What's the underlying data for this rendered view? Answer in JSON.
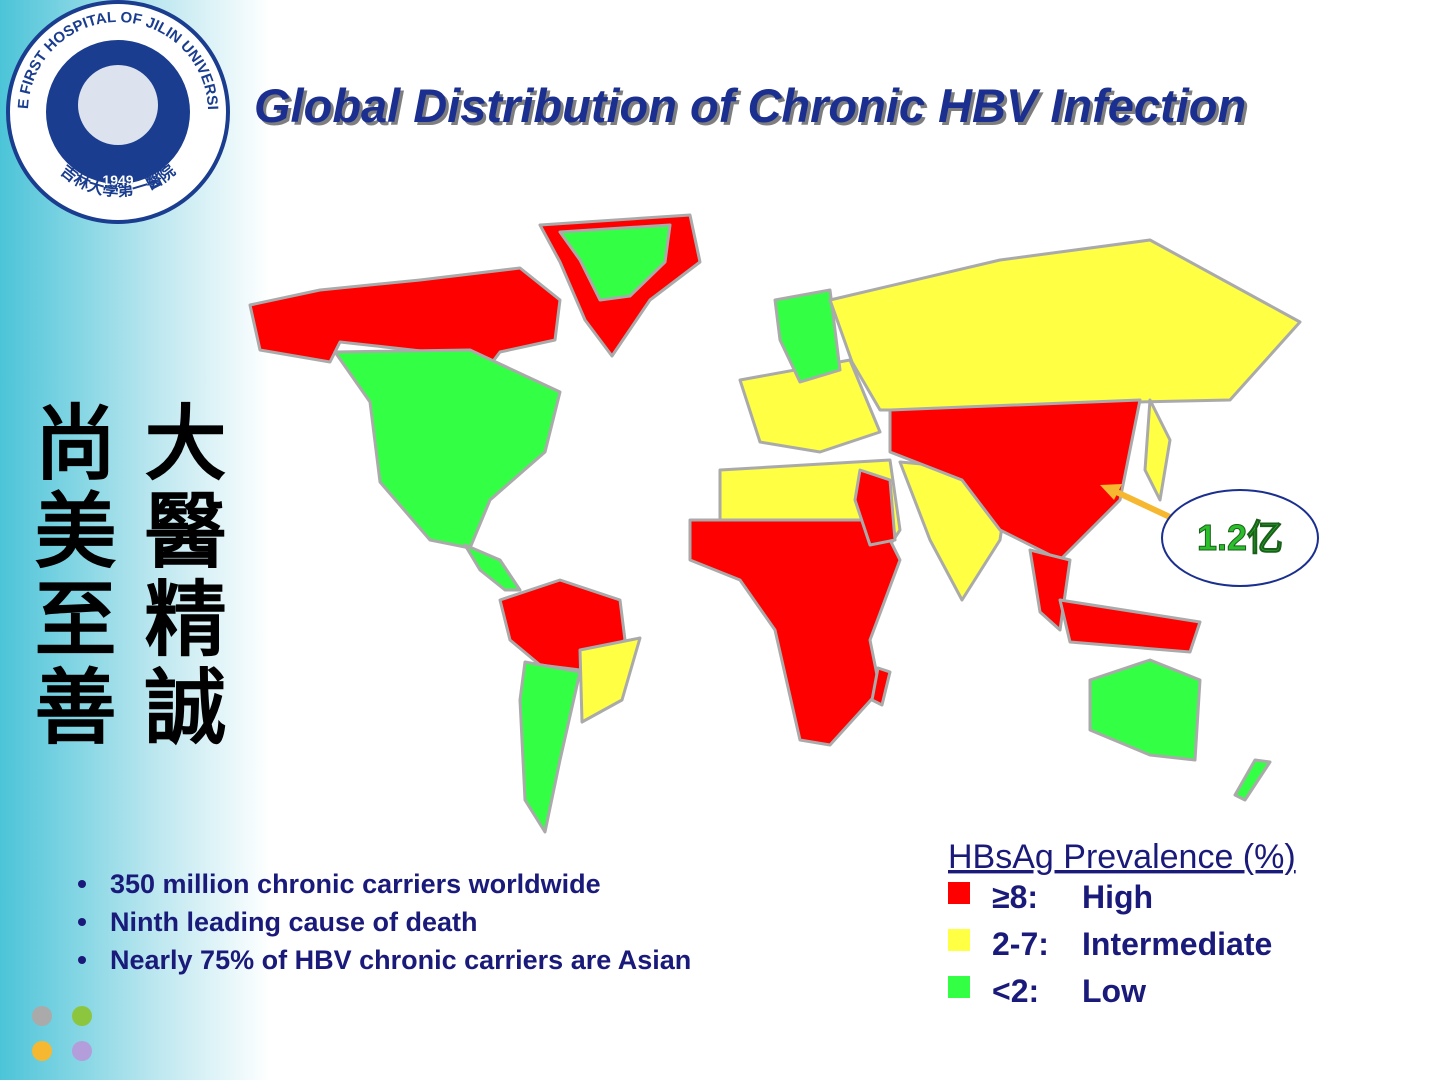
{
  "header": {
    "title": "Global Distribution of Chronic HBV Infection"
  },
  "logo": {
    "ring_text": "THE FIRST HOSPITAL OF JILIN UNIVERSITY",
    "chinese_text": "吉林大學第一醫院",
    "year": "1949"
  },
  "motto": {
    "columns": [
      "大醫精誠",
      "尚美至善"
    ]
  },
  "annotation": "1.2亿",
  "bullets": [
    "350 million chronic carriers worldwide",
    "Ninth leading cause of death",
    "Nearly 75% of HBV chronic carriers are Asian"
  ],
  "legend": {
    "title": "HBsAg Prevalence (%)",
    "items": [
      {
        "range": "≥8:",
        "label": "High",
        "color": "#ff0000"
      },
      {
        "range": "2-7:",
        "label": "Intermediate",
        "color": "#ffff44"
      },
      {
        "range": "<2:",
        "label": "Low",
        "color": "#33ff44"
      }
    ]
  }
}
